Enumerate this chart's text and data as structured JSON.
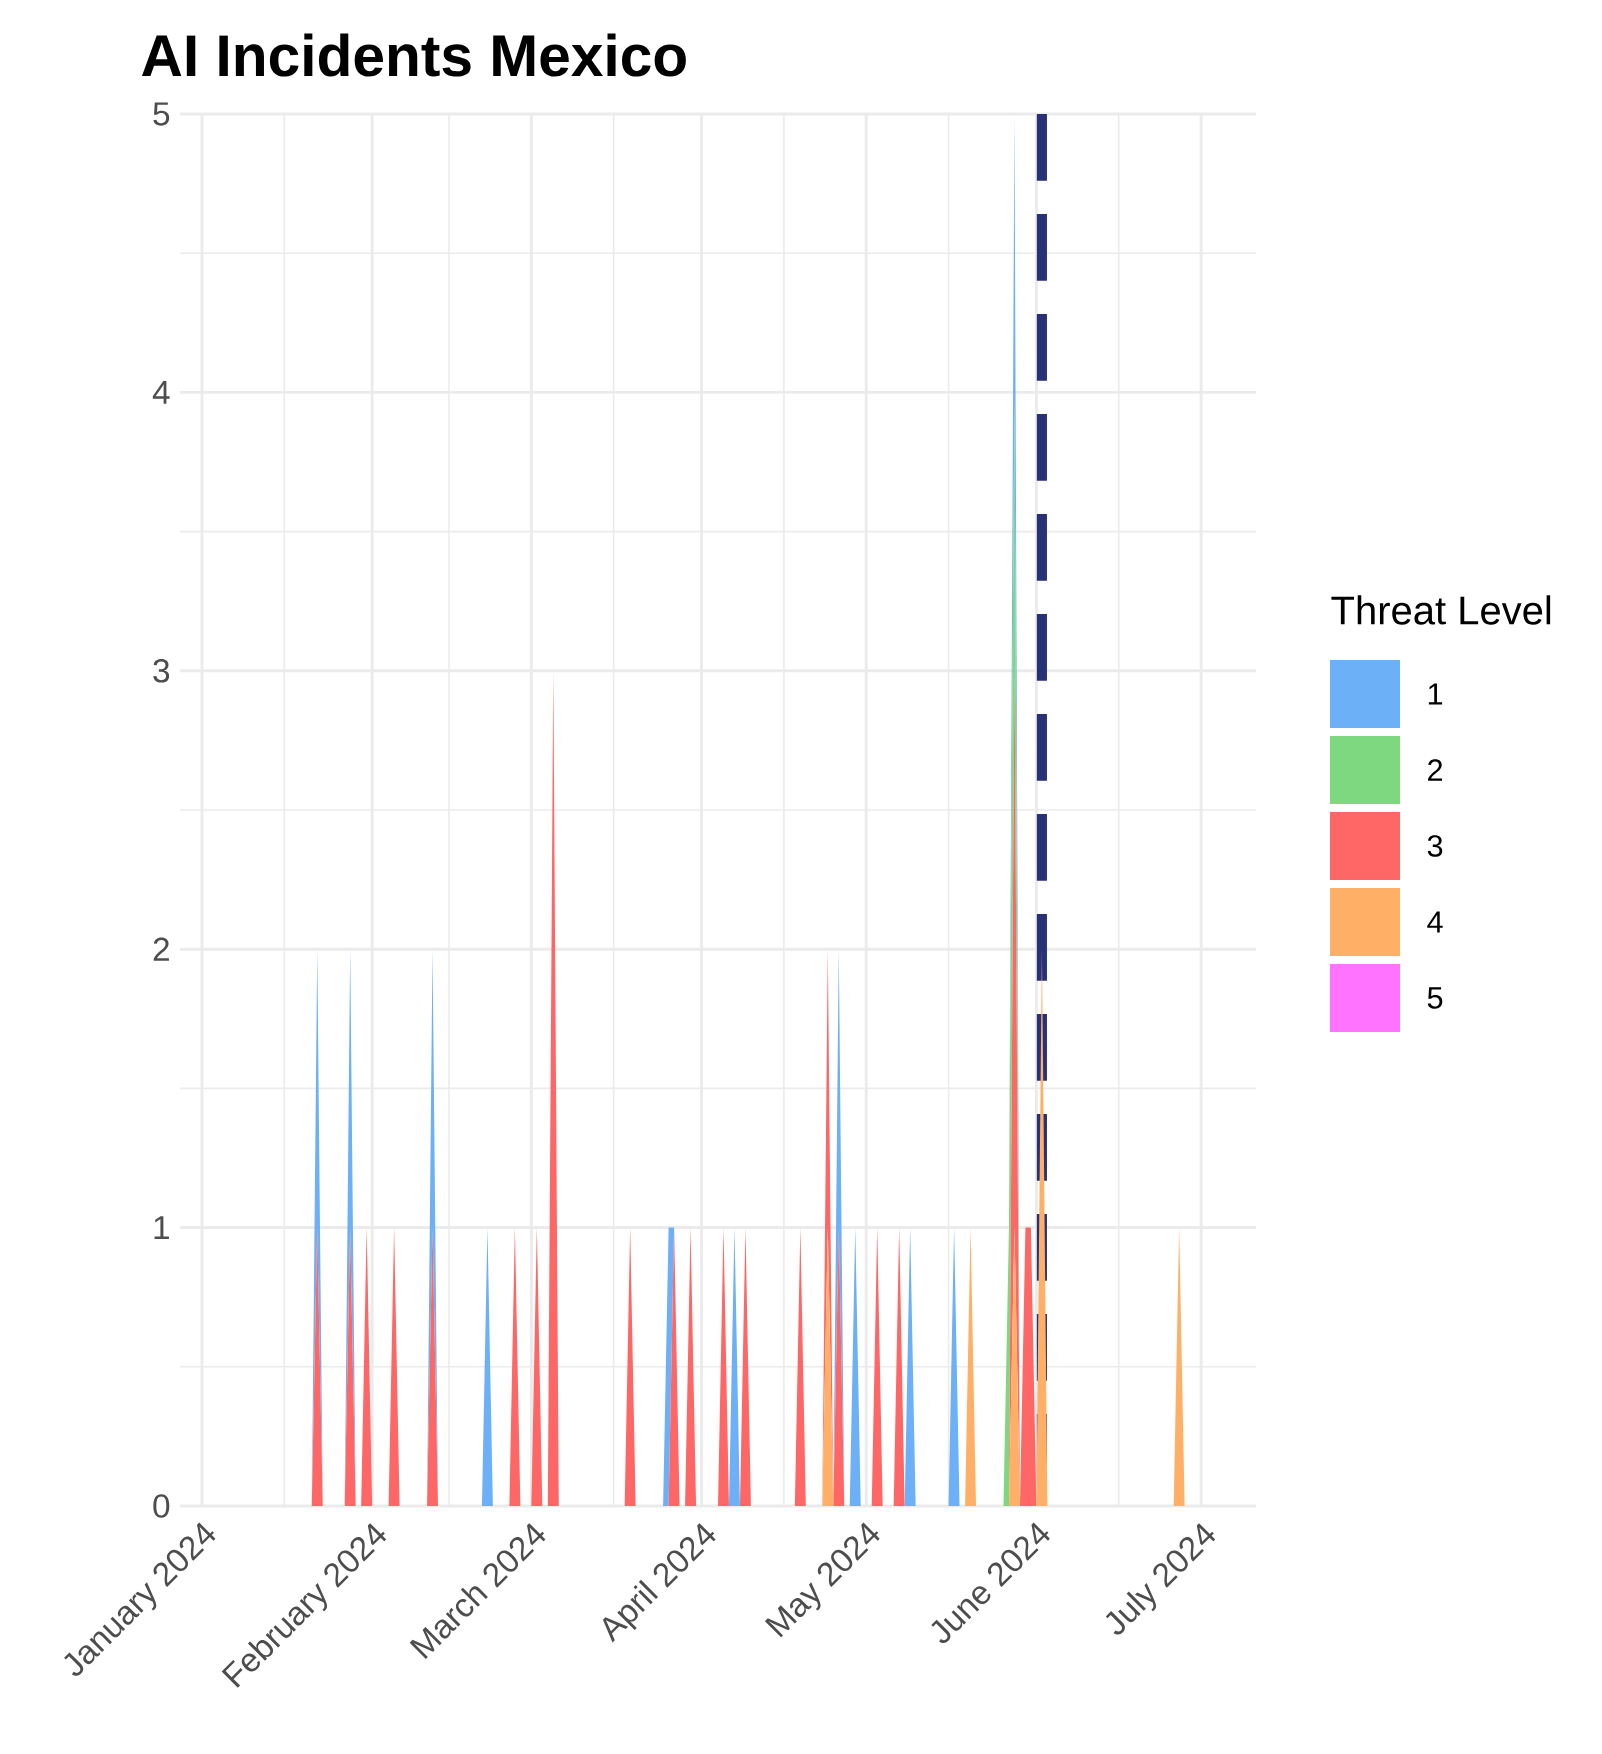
{
  "chart_data": {
    "type": "area",
    "stacked": true,
    "title": "AI Incidents Mexico",
    "legend_title": "Threat Level",
    "legend": "right",
    "grid": true,
    "x": [
      "2024-01-21",
      "2024-01-22",
      "2024-01-23",
      "2024-01-27",
      "2024-01-28",
      "2024-01-29",
      "2024-01-30",
      "2024-01-31",
      "2024-02-01",
      "2024-02-04",
      "2024-02-05",
      "2024-02-06",
      "2024-02-11",
      "2024-02-12",
      "2024-02-13",
      "2024-02-21",
      "2024-02-22",
      "2024-02-23",
      "2024-02-26",
      "2024-02-27",
      "2024-02-28",
      "2024-03-01",
      "2024-03-02",
      "2024-03-03",
      "2024-03-04",
      "2024-03-05",
      "2024-03-06",
      "2024-03-18",
      "2024-03-19",
      "2024-03-20",
      "2024-03-25",
      "2024-03-26",
      "2024-03-27",
      "2024-03-28",
      "2024-03-29",
      "2024-03-30",
      "2024-03-31",
      "2024-04-04",
      "2024-04-05",
      "2024-04-06",
      "2024-04-07",
      "2024-04-08",
      "2024-04-09",
      "2024-04-10",
      "2024-04-18",
      "2024-04-19",
      "2024-04-20",
      "2024-04-23",
      "2024-04-24",
      "2024-04-25",
      "2024-04-26",
      "2024-04-27",
      "2024-04-28",
      "2024-04-29",
      "2024-04-30",
      "2024-05-02",
      "2024-05-03",
      "2024-05-04",
      "2024-05-06",
      "2024-05-07",
      "2024-05-08",
      "2024-05-09",
      "2024-05-10",
      "2024-05-16",
      "2024-05-17",
      "2024-05-18",
      "2024-05-19",
      "2024-05-20",
      "2024-05-21",
      "2024-05-26",
      "2024-05-27",
      "2024-05-28",
      "2024-05-29",
      "2024-05-30",
      "2024-05-31",
      "2024-06-01",
      "2024-06-02",
      "2024-06-03",
      "2024-06-26",
      "2024-06-27",
      "2024-06-28"
    ],
    "series": [
      {
        "name": "5",
        "color": "#ff73ff",
        "values": [
          null,
          null,
          null,
          null,
          null,
          null,
          null,
          null,
          null,
          null,
          null,
          null,
          null,
          null,
          null,
          null,
          null,
          null,
          null,
          null,
          null,
          null,
          null,
          null,
          null,
          null,
          null,
          null,
          null,
          null,
          null,
          null,
          null,
          null,
          null,
          null,
          null,
          null,
          null,
          null,
          null,
          null,
          null,
          null,
          null,
          null,
          null,
          null,
          null,
          null,
          null,
          null,
          null,
          null,
          null,
          null,
          null,
          null,
          null,
          null,
          null,
          null,
          null,
          null,
          null,
          null,
          null,
          null,
          null,
          null,
          null,
          null,
          null,
          null,
          null,
          null,
          null,
          null,
          null,
          null,
          null
        ]
      },
      {
        "name": "4",
        "color": "#ffb066",
        "values": [
          0,
          0,
          0,
          0,
          0,
          0,
          0,
          0,
          0,
          0,
          0,
          0,
          0,
          0,
          0,
          0,
          0,
          0,
          0,
          0,
          0,
          0,
          0,
          0,
          0,
          0,
          0,
          0,
          0,
          0,
          0,
          0,
          0,
          0,
          0,
          0,
          0,
          0,
          0,
          0,
          0,
          0,
          0,
          0,
          0,
          0,
          0,
          0,
          1,
          0,
          0,
          0,
          0,
          0,
          0,
          0,
          0,
          0,
          0,
          0,
          0,
          0,
          0,
          0,
          0,
          0,
          0,
          1,
          0,
          0,
          0,
          1,
          0,
          0,
          0,
          0,
          2,
          0,
          0,
          1,
          0
        ]
      },
      {
        "name": "3",
        "color": "#ff6666",
        "values": [
          0,
          1,
          0,
          0,
          1,
          0,
          0,
          1,
          0,
          0,
          1,
          0,
          0,
          1,
          0,
          0,
          0,
          0,
          0,
          1,
          0,
          0,
          1,
          0,
          0,
          3,
          0,
          0,
          1,
          0,
          0,
          0,
          1,
          0,
          0,
          1,
          0,
          0,
          1,
          0,
          0,
          0,
          1,
          0,
          0,
          1,
          0,
          0,
          1,
          0,
          1,
          0,
          0,
          0,
          0,
          0,
          1,
          0,
          0,
          1,
          0,
          0,
          0,
          0,
          0,
          0,
          0,
          0,
          0,
          0,
          0,
          2,
          0,
          1,
          1,
          0,
          0,
          0,
          0,
          0,
          0
        ]
      },
      {
        "name": "2",
        "color": "#7dd87f",
        "values": [
          0,
          0,
          0,
          0,
          0,
          0,
          0,
          0,
          0,
          0,
          0,
          0,
          0,
          0,
          0,
          0,
          0,
          0,
          0,
          0,
          0,
          0,
          0,
          0,
          0,
          0,
          0,
          0,
          0,
          0,
          0,
          0,
          0,
          0,
          0,
          0,
          0,
          0,
          0,
          0,
          0,
          0,
          0,
          0,
          0,
          0,
          0,
          0,
          0,
          0,
          0,
          0,
          0,
          0,
          0,
          0,
          0,
          0,
          0,
          0,
          0,
          0,
          0,
          0,
          0,
          0,
          0,
          0,
          0,
          0,
          1,
          1,
          0,
          0,
          0,
          0,
          0,
          0,
          0,
          0,
          0
        ]
      },
      {
        "name": "1",
        "color": "#6cb0f7",
        "values": [
          0,
          1,
          0,
          0,
          1,
          0,
          0,
          0,
          0,
          0,
          0,
          0,
          0,
          1,
          0,
          0,
          1,
          0,
          0,
          0,
          0,
          0,
          0,
          0,
          0,
          0,
          0,
          0,
          0,
          0,
          0,
          1,
          0,
          0,
          0,
          0,
          0,
          0,
          0,
          0,
          1,
          0,
          0,
          0,
          0,
          0,
          0,
          0,
          0,
          0,
          1,
          0,
          0,
          1,
          0,
          0,
          0,
          0,
          0,
          0,
          0,
          1,
          0,
          0,
          1,
          0,
          0,
          0,
          0,
          0,
          0,
          1,
          0,
          0,
          0,
          0,
          0,
          0,
          0,
          0,
          0
        ]
      }
    ],
    "xlim": [
      "2023-12-28",
      "2024-07-11"
    ],
    "xticks": [
      {
        "value": "2024-01-01",
        "label": "January 2024"
      },
      {
        "value": "2024-01-16",
        "label": null
      },
      {
        "value": "2024-02-01",
        "label": "February 2024"
      },
      {
        "value": "2024-02-15",
        "label": null
      },
      {
        "value": "2024-03-01",
        "label": "March 2024"
      },
      {
        "value": "2024-03-16",
        "label": null
      },
      {
        "value": "2024-04-01",
        "label": "April 2024"
      },
      {
        "value": "2024-04-16",
        "label": null
      },
      {
        "value": "2024-05-01",
        "label": "May 2024"
      },
      {
        "value": "2024-05-16",
        "label": null
      },
      {
        "value": "2024-06-01",
        "label": "June 2024"
      },
      {
        "value": "2024-06-16",
        "label": null
      },
      {
        "value": "2024-07-01",
        "label": "July 2024"
      }
    ],
    "ylim": [
      0,
      5
    ],
    "yticks": [
      0,
      {
        "value": 0.5,
        "label": null
      },
      1,
      {
        "value": 1.5,
        "label": null
      },
      2,
      {
        "value": 2.5,
        "label": null
      },
      3,
      {
        "value": 3.5,
        "label": null
      },
      4,
      {
        "value": 4.5,
        "label": null
      },
      5
    ],
    "ref_lines": [
      {
        "axis": "x",
        "value": "2024-06-02",
        "color": "#283178",
        "line_style": "dashed"
      }
    ]
  }
}
